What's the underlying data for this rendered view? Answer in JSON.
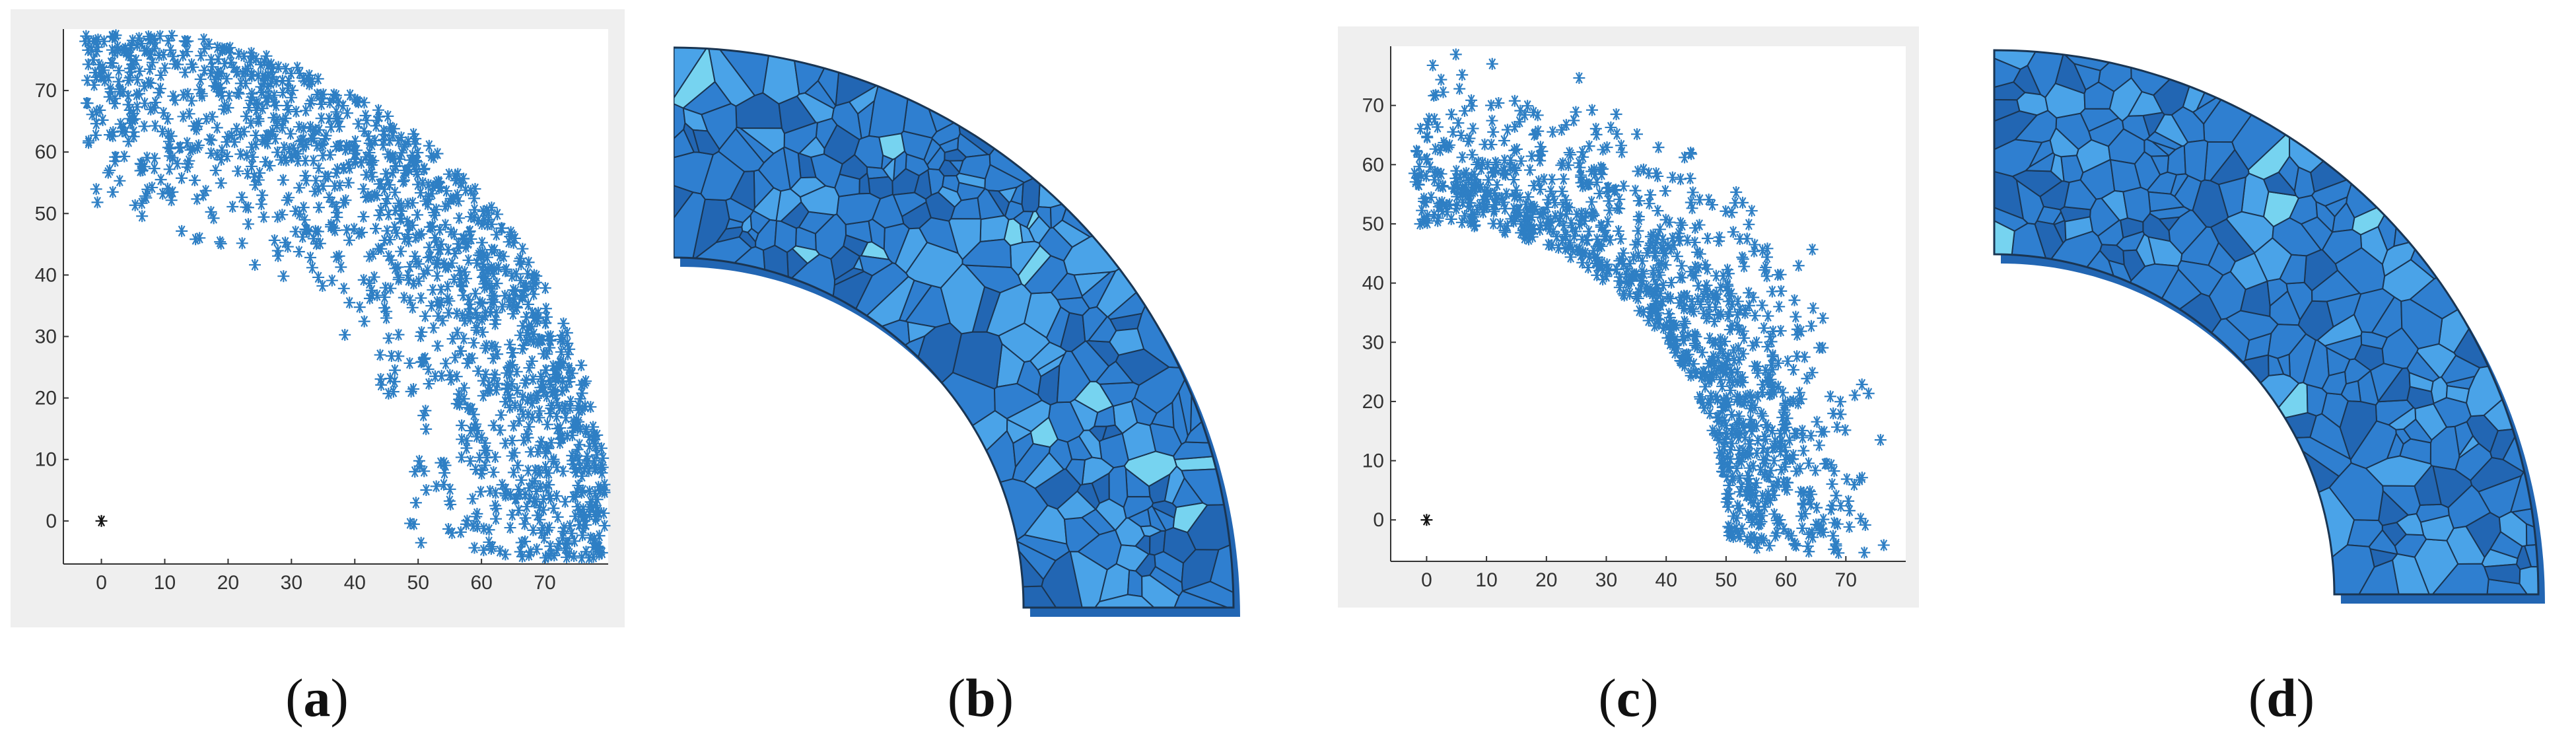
{
  "captions": [
    {
      "open": "(",
      "letter": "a",
      "close": ")"
    },
    {
      "open": "(",
      "letter": "b",
      "close": ")"
    },
    {
      "open": "(",
      "letter": "c",
      "close": ")"
    },
    {
      "open": "(",
      "letter": "d",
      "close": ")"
    }
  ],
  "colors": {
    "marker": "#2e7fc4",
    "origin_marker": "#111111",
    "mesh_fill": "#2f7fd0",
    "mesh_fill_dark": "#2266b3",
    "mesh_fill_light": "#4aa3e8",
    "mesh_fill_cyan": "#76d3f0",
    "mesh_edge": "#1a3552",
    "frame_bg": "#efefef",
    "axes_bg": "#ffffff",
    "axis_line": "#333333",
    "tick_text": "#333333"
  },
  "chart_data": [
    {
      "type": "scatter",
      "panel": "a",
      "marker": "asterisk",
      "xlim": [
        -6,
        80
      ],
      "ylim": [
        -7,
        80
      ],
      "xticks": [
        0,
        10,
        20,
        30,
        40,
        50,
        60,
        70
      ],
      "yticks": [
        0,
        10,
        20,
        30,
        40,
        50,
        60,
        70
      ],
      "xlabel": "",
      "ylabel": "",
      "title": "",
      "origin_point": [
        0,
        0
      ],
      "region": {
        "r_inner": 50,
        "r_outer": 80,
        "theta_range_deg": [
          0,
          90
        ]
      },
      "point_count": 1400,
      "density": "increasing toward outer radius",
      "grid": false
    },
    {
      "type": "scatter",
      "panel": "c",
      "marker": "asterisk",
      "xlim": [
        -6,
        80
      ],
      "ylim": [
        -7,
        80
      ],
      "xticks": [
        0,
        10,
        20,
        30,
        40,
        50,
        60,
        70
      ],
      "yticks": [
        0,
        10,
        20,
        30,
        40,
        50,
        60,
        70
      ],
      "xlabel": "",
      "ylabel": "",
      "title": "",
      "origin_point": [
        0,
        0
      ],
      "region": {
        "r_inner": 50,
        "r_outer": 80,
        "theta_range_deg": [
          0,
          90
        ]
      },
      "point_count": 1100,
      "density": "increasing toward inner radius",
      "grid": false
    }
  ],
  "meshes": [
    {
      "panel": "b",
      "kind": "voronoi-tessellation",
      "cells": 260,
      "shape": "quarter-annulus",
      "r_inner": 50,
      "r_outer": 80
    },
    {
      "panel": "d",
      "kind": "voronoi-tessellation",
      "cells": 230,
      "shape": "quarter-annulus",
      "r_inner": 50,
      "r_outer": 80
    }
  ]
}
